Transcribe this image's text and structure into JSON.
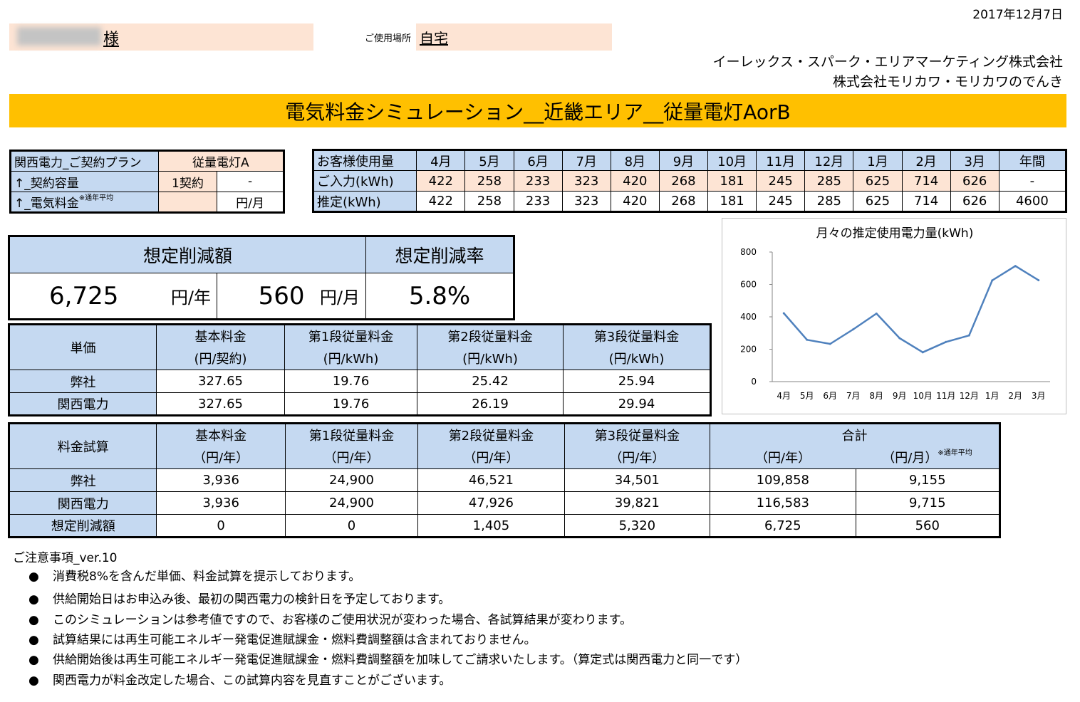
{
  "header": {
    "date": "2017年12月7日",
    "sama": "様",
    "place_label": "ご使用場所",
    "place_value": "自宅",
    "company_line1": "イーレックス・スパーク・エリアマーケティング株式会社",
    "company_line2": "株式会社モリカワ・モリカワのでんき",
    "banner": "電気料金シミュレーション__近畿エリア__従量電灯AorB"
  },
  "plan": {
    "row1_label": "関西電力_ご契約プラン",
    "row1_value": "従量電灯A",
    "row2_label": "↑_契約容量",
    "row2_value1": "1契約",
    "row2_value2": "-",
    "row3_label": "↑_電気料金",
    "row3_note": "※通年平均",
    "row3_value1": "",
    "row3_value2": "円/月"
  },
  "usage": {
    "header_label": "お客様使用量",
    "months": [
      "4月",
      "5月",
      "6月",
      "7月",
      "8月",
      "9月",
      "10月",
      "11月",
      "12月",
      "1月",
      "2月",
      "3月",
      "年間"
    ],
    "input_label": "ご入力(kWh)",
    "input_values": [
      "422",
      "258",
      "233",
      "323",
      "420",
      "268",
      "181",
      "245",
      "285",
      "625",
      "714",
      "626",
      "-"
    ],
    "estimate_label": "推定(kWh)",
    "estimate_values": [
      "422",
      "258",
      "233",
      "323",
      "420",
      "268",
      "181",
      "245",
      "285",
      "625",
      "714",
      "626",
      "4600"
    ]
  },
  "savings": {
    "amount_header": "想定削減額",
    "rate_header": "想定削減率",
    "yearly_value": "6,725",
    "yearly_unit": "円/年",
    "monthly_value": "560",
    "monthly_unit": "円/月",
    "rate_value": "5.8%"
  },
  "unitprice": {
    "corner": "単価",
    "headers": [
      {
        "top": "基本料金",
        "bottom": "(円/契約)"
      },
      {
        "top": "第1段従量料金",
        "bottom": "(円/kWh)"
      },
      {
        "top": "第2段従量料金",
        "bottom": "(円/kWh)"
      },
      {
        "top": "第3段従量料金",
        "bottom": "(円/kWh)"
      }
    ],
    "rows": [
      {
        "label": "弊社",
        "values": [
          "327.65",
          "19.76",
          "25.42",
          "25.94"
        ]
      },
      {
        "label": "関西電力",
        "values": [
          "327.65",
          "19.76",
          "26.19",
          "29.94"
        ]
      }
    ]
  },
  "calc": {
    "corner": "料金試算",
    "headers": [
      {
        "top": "基本料金",
        "bottom": "（円/年）"
      },
      {
        "top": "第1段従量料金",
        "bottom": "（円/年）"
      },
      {
        "top": "第2段従量料金",
        "bottom": "（円/年）"
      },
      {
        "top": "第3段従量料金",
        "bottom": "（円/年）"
      }
    ],
    "total_header": "合計",
    "total_sub_year": "（円/年）",
    "total_sub_month": "（円/月）",
    "total_sub_note": "※通年平均",
    "rows": [
      {
        "label": "弊社",
        "values": [
          "3,936",
          "24,900",
          "46,521",
          "34,501",
          "109,858",
          "9,155"
        ]
      },
      {
        "label": "関西電力",
        "values": [
          "3,936",
          "24,900",
          "47,926",
          "39,821",
          "116,583",
          "9,715"
        ]
      },
      {
        "label": "想定削減額",
        "values": [
          "0",
          "0",
          "1,405",
          "5,320",
          "6,725",
          "560"
        ]
      }
    ]
  },
  "notes": {
    "title": "ご注意事項_ver.10",
    "bullet": "●",
    "items": [
      "消費税8%を含んだ単価、料金試算を提示しております。",
      "供給開始日はお申込み後、最初の関西電力の検針日を予定しております。",
      "このシミュレーションは参考値ですので、お客様のご使用状況が変わった場合、各試算結果が変わります。",
      "試算結果には再生可能エネルギー発電促進賦課金・燃料費調整額は含まれておりません。",
      "供給開始後は再生可能エネルギー発電促進賦課金・燃料費調整額を加味してご請求いたします。（算定式は関西電力と同一です）",
      "関西電力が料金改定した場合、この試算内容を見直すことがございます。"
    ]
  },
  "chart_data": {
    "type": "line",
    "title": "月々の推定使用電力量(kWh)",
    "categories": [
      "4月",
      "5月",
      "6月",
      "7月",
      "8月",
      "9月",
      "10月",
      "11月",
      "12月",
      "1月",
      "2月",
      "3月"
    ],
    "values": [
      422,
      258,
      233,
      323,
      420,
      268,
      181,
      245,
      285,
      625,
      714,
      626
    ],
    "ylim": [
      0,
      800
    ],
    "yticks": [
      0,
      200,
      400,
      600,
      800
    ],
    "grid": false,
    "legend": "none",
    "line_color": "#4f81bd"
  }
}
